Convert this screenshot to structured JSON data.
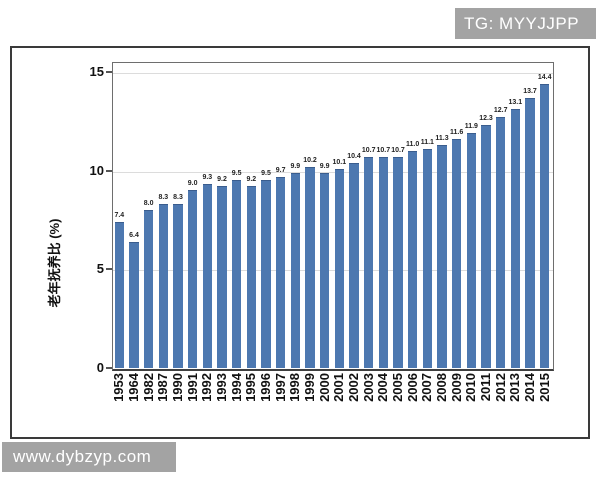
{
  "watermarks": {
    "top": "TG: MYYJJPP",
    "bottom": "www.dybzyp.com"
  },
  "chart_data": {
    "type": "bar",
    "title": "",
    "xlabel": "",
    "ylabel": "老年抚养比 (%)",
    "categories": [
      "1953",
      "1964",
      "1982",
      "1987",
      "1990",
      "1991",
      "1992",
      "1993",
      "1994",
      "1995",
      "1996",
      "1997",
      "1998",
      "1999",
      "2000",
      "2001",
      "2002",
      "2003",
      "2004",
      "2005",
      "2006",
      "2007",
      "2008",
      "2009",
      "2010",
      "2011",
      "2012",
      "2013",
      "2014",
      "2015"
    ],
    "values": [
      7.4,
      6.4,
      8.0,
      8.3,
      8.3,
      9.0,
      9.3,
      9.2,
      9.5,
      9.2,
      9.5,
      9.7,
      9.9,
      10.2,
      9.9,
      10.1,
      10.4,
      10.7,
      10.7,
      10.7,
      11.0,
      11.1,
      11.3,
      11.6,
      11.9,
      12.3,
      12.7,
      13.1,
      13.7,
      14.4
    ],
    "value_labels_shown": true,
    "yticks": [
      0,
      5,
      10,
      15
    ],
    "ylim": [
      0,
      15.5
    ],
    "grid": "horizontal",
    "legend": "none",
    "style": {
      "bar_color": "#4d78b0",
      "bar_edge_color": "#3a5d8e",
      "grid_color": "#dcdcdc",
      "plot_border_color": "#6e6e6e",
      "outer_border_color": "#3a3a3a",
      "watermark_bg": "#a3a3a3",
      "watermark_text_color": "#ffffff",
      "label_color": "#1f1f1f"
    }
  }
}
